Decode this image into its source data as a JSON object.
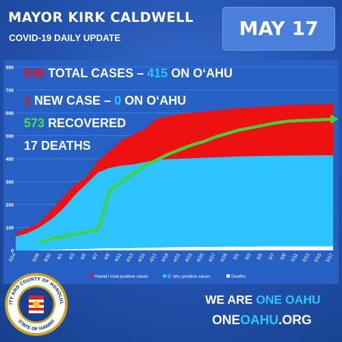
{
  "header": {
    "title": "MAYOR KIRK CALDWELL",
    "subtitle": "COVID-19 DAILY UPDATE",
    "date": "MAY 17"
  },
  "stats": {
    "total_cases": "640",
    "total_cases_label": "TOTAL CASES –",
    "oahu_cases": "415",
    "oahu_cases_label": "ON O‘AHU",
    "new_cases": "1",
    "new_cases_label": "NEW CASE –",
    "new_oahu": "0",
    "new_oahu_label": "ON O‘AHU",
    "recovered": "573",
    "recovered_label": "RECOVERED",
    "deaths": "17",
    "deaths_label": "DEATHS"
  },
  "footer": {
    "line1_prefix": "WE ARE",
    "line1_accent": "ONE OAHU",
    "line2_prefix": "ONE",
    "line2_accent": "OAHU",
    "line2_suffix": ".ORG"
  },
  "seal": {
    "top_text": "CITY AND COUNTY OF HONOLULU",
    "bottom_text": "STATE OF HAWAII"
  },
  "colors": {
    "hawaii_total": "#ee1111",
    "oahu": "#2ec4ff",
    "deaths": "#ffffff",
    "recovered": "#3fd33f"
  },
  "chart_data": {
    "type": "area",
    "ylim": [
      0,
      800
    ],
    "yticks": [
      0,
      100,
      200,
      300,
      400,
      500,
      600,
      700,
      800
    ],
    "x": [
      "3/24",
      "3/26",
      "3/28",
      "3/30",
      "4/1",
      "4/3",
      "4/5",
      "4/7",
      "4/9",
      "4/11",
      "4/13",
      "4/15",
      "4/17",
      "4/19",
      "4/21",
      "4/23",
      "4/25",
      "4/27",
      "4/29",
      "5/1",
      "5/3",
      "5/5",
      "5/7",
      "5/9",
      "5/11",
      "5/13",
      "5/15",
      "5/17"
    ],
    "x_tick_labels": [
      "3/24",
      "3/28",
      "3/30",
      "4/1",
      "4/3",
      "4/5",
      "4/7",
      "4/9",
      "4/11",
      "4/13",
      "4/15",
      "4/17",
      "4/19",
      "4/21",
      "4/23",
      "4/25",
      "4/27",
      "4/29",
      "5/1",
      "5/3",
      "5/5",
      "5/7",
      "5/9",
      "5/11",
      "5/13",
      "5/15",
      "5/17"
    ],
    "series": [
      {
        "name": "Hawai'i total positive cases",
        "values": [
          77,
          95,
          120,
          175,
          230,
          285,
          320,
          390,
          435,
          480,
          505,
          530,
          575,
          585,
          595,
          600,
          605,
          610,
          615,
          620,
          623,
          627,
          630,
          633,
          635,
          637,
          638,
          640
        ]
      },
      {
        "name": "O 'ahu positive cases",
        "values": [
          60,
          75,
          100,
          135,
          180,
          240,
          290,
          340,
          360,
          370,
          375,
          385,
          395,
          398,
          400,
          402,
          404,
          406,
          408,
          410,
          411,
          412,
          413,
          413,
          414,
          414,
          415,
          415
        ]
      },
      {
        "name": "Deaths",
        "values": [
          0,
          0,
          1,
          2,
          4,
          5,
          6,
          8,
          9,
          9,
          10,
          11,
          12,
          13,
          14,
          15,
          15,
          15,
          16,
          16,
          16,
          17,
          17,
          17,
          17,
          17,
          17,
          17
        ]
      },
      {
        "name": "Recovered",
        "values": [
          null,
          null,
          35,
          50,
          60,
          70,
          80,
          90,
          260,
          300,
          335,
          370,
          395,
          420,
          440,
          460,
          475,
          495,
          510,
          525,
          535,
          545,
          555,
          563,
          566,
          568,
          570,
          573
        ]
      }
    ]
  }
}
